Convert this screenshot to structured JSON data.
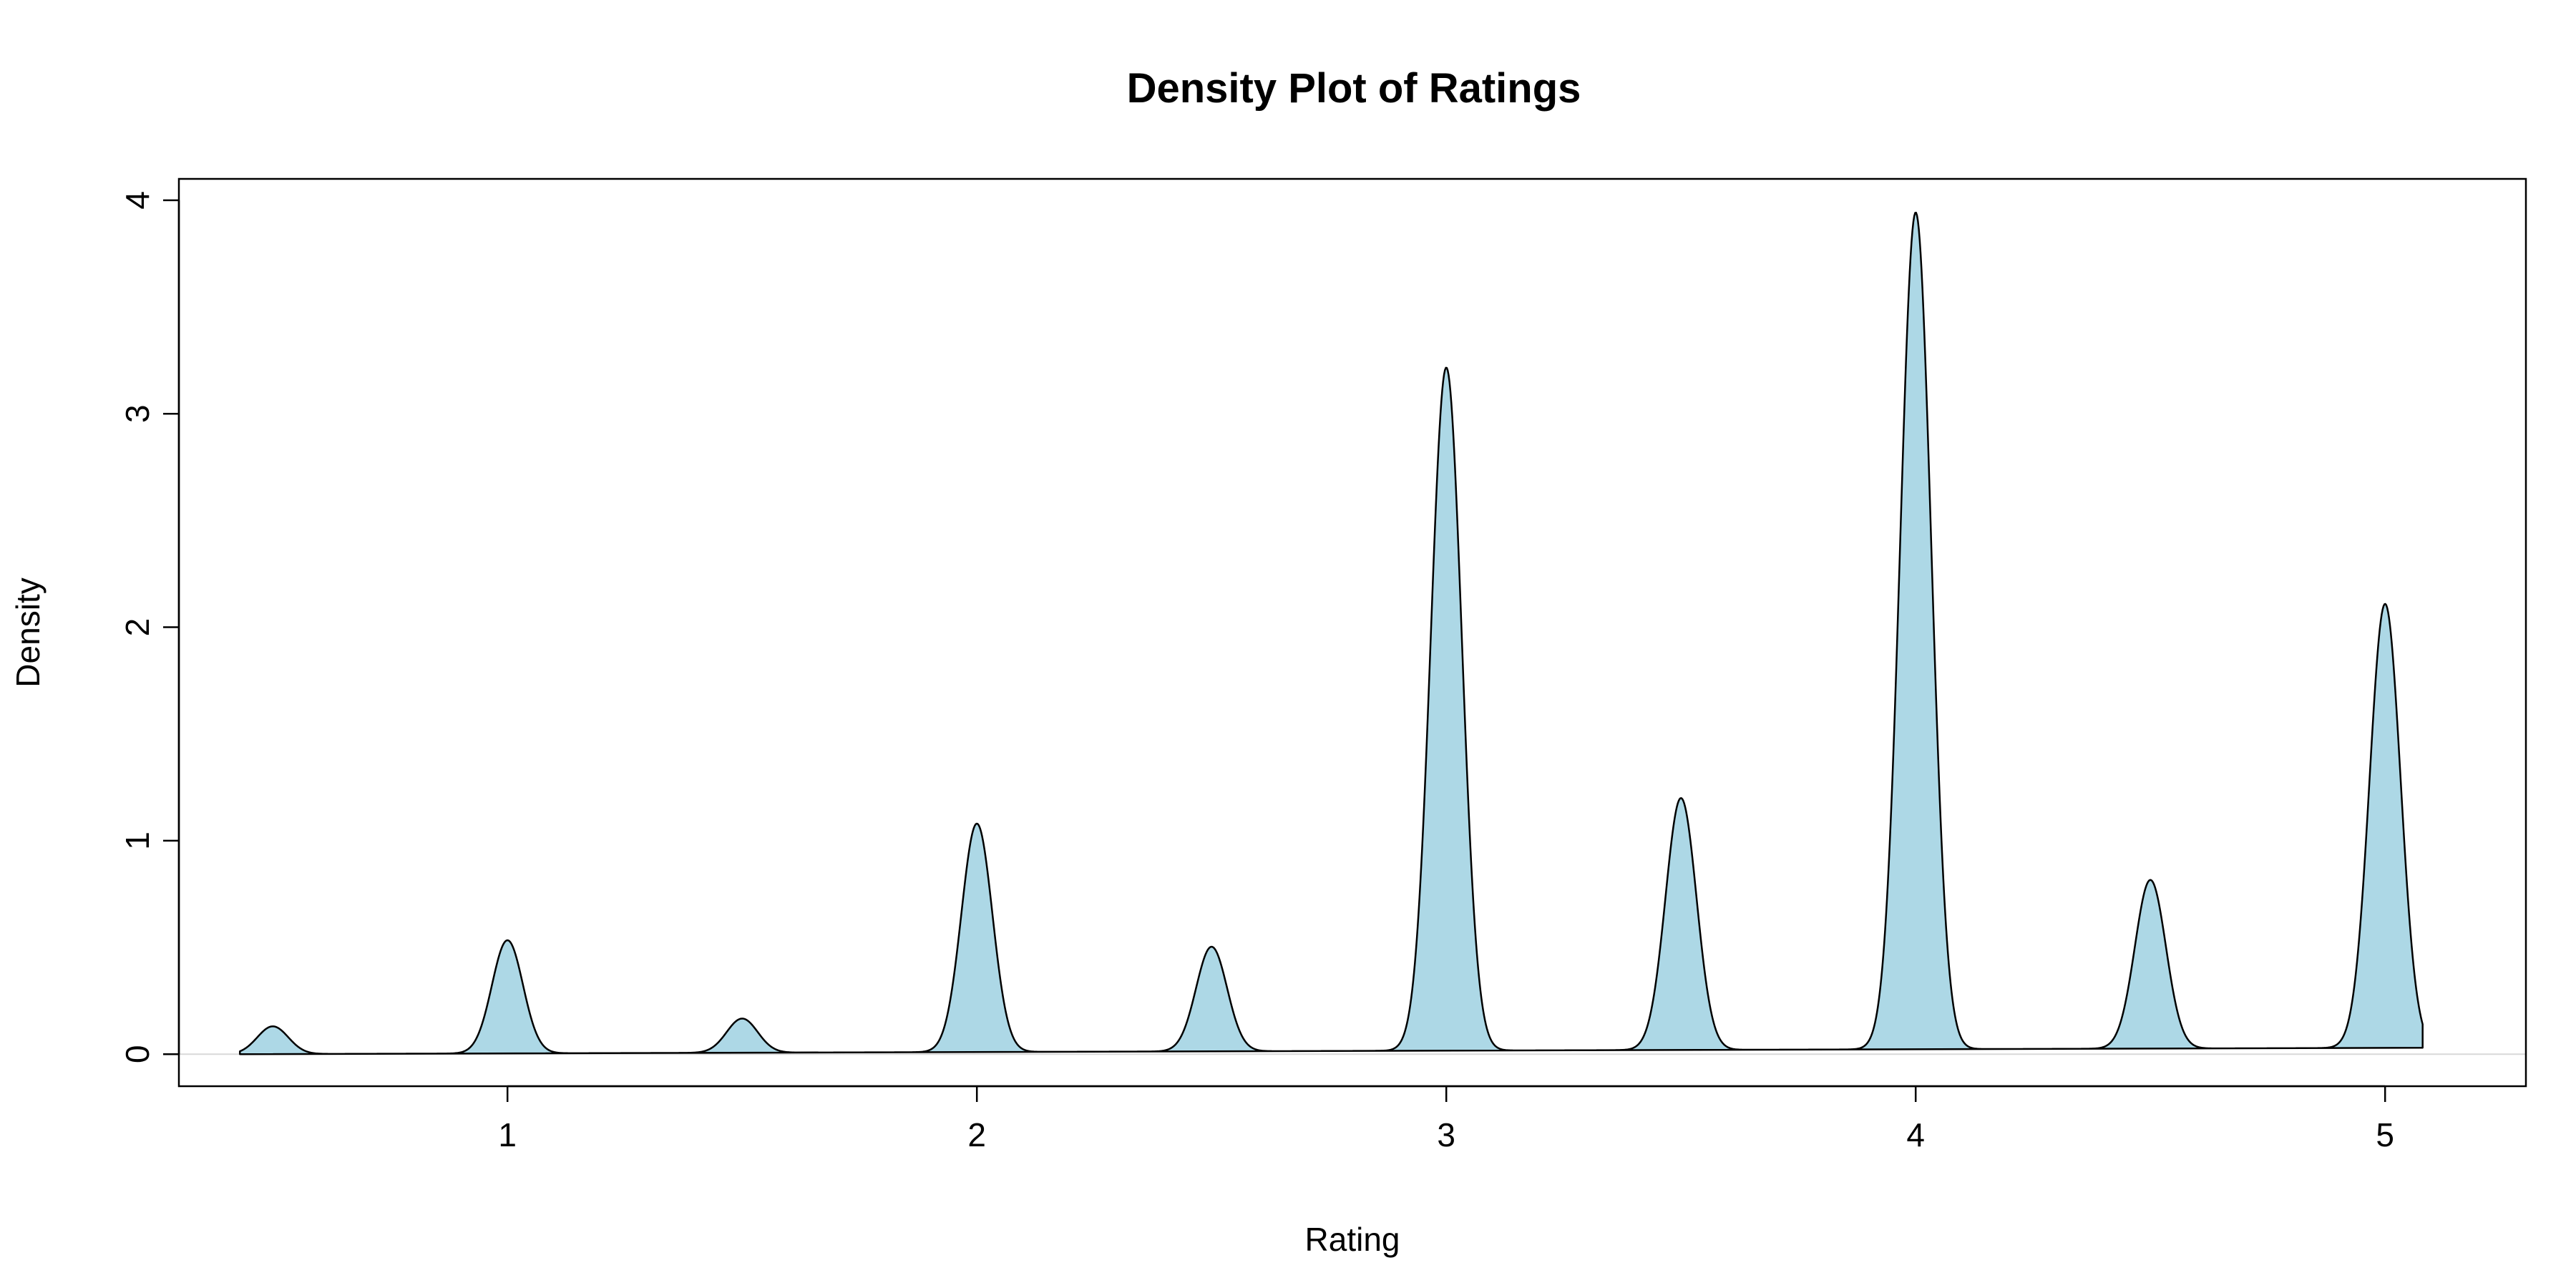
{
  "chart_data": {
    "type": "area",
    "title": "Density Plot of Ratings",
    "xlabel": "Rating",
    "ylabel": "Density",
    "xlim": [
      0.3,
      5.3
    ],
    "ylim": [
      -0.15,
      4.1
    ],
    "x_ticks": [
      1,
      2,
      3,
      4,
      5
    ],
    "y_ticks": [
      0,
      1,
      2,
      3,
      4
    ],
    "grid": false,
    "legend": "none",
    "fill_color": "#add8e6",
    "line_color": "#000000",
    "x_range": [
      0.43,
      5.08
    ],
    "baseline_drift": [
      0.0,
      0.03
    ],
    "peaks": [
      {
        "x": 0.5,
        "y": 0.13
      },
      {
        "x": 1.0,
        "y": 0.53
      },
      {
        "x": 1.5,
        "y": 0.16
      },
      {
        "x": 2.0,
        "y": 1.07
      },
      {
        "x": 2.5,
        "y": 0.49
      },
      {
        "x": 3.0,
        "y": 3.2
      },
      {
        "x": 3.5,
        "y": 1.18
      },
      {
        "x": 4.0,
        "y": 3.92
      },
      {
        "x": 4.5,
        "y": 0.79
      },
      {
        "x": 5.0,
        "y": 2.08
      }
    ]
  }
}
